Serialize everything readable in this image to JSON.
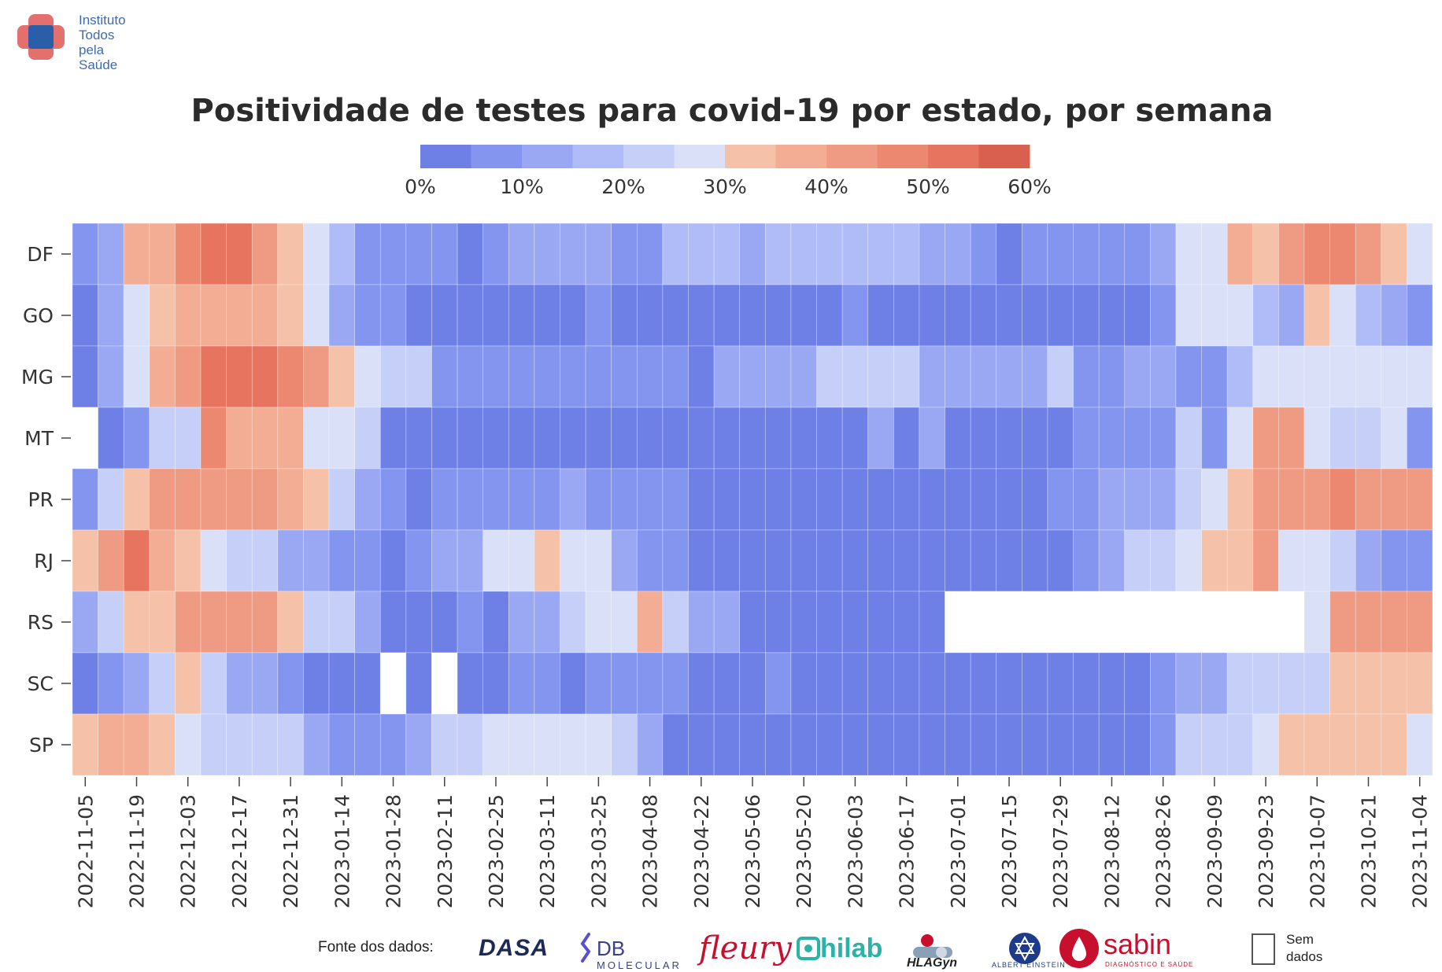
{
  "logo": {
    "lines": [
      "Instituto",
      "Todos",
      "pela",
      "Saúde"
    ],
    "colors": {
      "red": "#e0605c",
      "blue": "#2a5ea8"
    }
  },
  "chart_data": {
    "type": "heatmap",
    "title": "Positividade de testes para covid-19 por estado, por semana",
    "colorbar": {
      "tick_labels": [
        "0%",
        "10%",
        "20%",
        "30%",
        "40%",
        "50%",
        "60%"
      ],
      "tick_values": [
        0,
        10,
        20,
        30,
        40,
        50,
        60
      ],
      "range": [
        0,
        60
      ],
      "band_width": 5,
      "colors": [
        "#6e80e6",
        "#8495ef",
        "#9aa8f4",
        "#b0bcf7",
        "#c5cff8",
        "#d9e0f8",
        "#f5c1a8",
        "#f3ad95",
        "#ef9a82",
        "#ec8870",
        "#e7745e",
        "#d9604e"
      ]
    },
    "rows": [
      "DF",
      "GO",
      "MG",
      "MT",
      "PR",
      "RJ",
      "RS",
      "SC",
      "SP"
    ],
    "x_tick_labels": [
      "2022-11-05",
      "2022-11-19",
      "2022-12-03",
      "2022-12-17",
      "2022-12-31",
      "2023-01-14",
      "2023-01-28",
      "2023-02-11",
      "2023-02-25",
      "2023-03-11",
      "2023-03-25",
      "2023-04-08",
      "2023-04-22",
      "2023-05-06",
      "2023-05-20",
      "2023-06-03",
      "2023-06-17",
      "2023-07-01",
      "2023-07-15",
      "2023-07-29",
      "2023-08-12",
      "2023-08-26",
      "2023-09-09",
      "2023-09-23",
      "2023-10-07",
      "2023-10-21",
      "2023-11-04"
    ],
    "weeks_count": 53,
    "values_percent": [
      [
        7,
        14,
        37,
        37,
        47,
        50,
        52,
        42,
        33,
        27,
        15,
        9,
        9,
        5,
        5,
        4,
        9,
        11,
        14,
        14,
        11,
        9,
        9,
        19,
        19,
        16,
        14,
        16,
        16,
        16,
        16,
        16,
        16,
        14,
        11,
        9,
        4,
        5,
        5,
        9,
        9,
        9,
        14,
        27,
        29,
        36,
        32,
        42,
        49,
        49,
        40,
        34,
        27
      ],
      [
        4,
        14,
        27,
        33,
        37,
        37,
        37,
        37,
        33,
        26,
        14,
        9,
        5,
        4,
        4,
        4,
        4,
        4,
        4,
        4,
        9,
        4,
        4,
        0,
        4,
        4,
        4,
        4,
        4,
        4,
        9,
        4,
        4,
        4,
        4,
        4,
        4,
        4,
        2,
        4,
        4,
        4,
        9,
        27,
        27,
        27,
        19,
        14,
        33,
        27,
        19,
        14,
        9
      ],
      [
        4,
        14,
        27,
        37,
        42,
        52,
        54,
        54,
        47,
        44,
        33,
        27,
        20,
        20,
        9,
        9,
        9,
        9,
        9,
        9,
        9,
        9,
        9,
        9,
        4,
        14,
        14,
        14,
        14,
        20,
        20,
        20,
        20,
        14,
        14,
        14,
        11,
        14,
        20,
        9,
        9,
        14,
        14,
        9,
        9,
        16,
        27,
        27,
        27,
        27,
        27,
        27,
        27
      ],
      [
        null,
        4,
        9,
        20,
        20,
        49,
        37,
        37,
        37,
        27,
        27,
        20,
        4,
        0,
        4,
        4,
        4,
        0,
        4,
        4,
        0,
        0,
        4,
        4,
        4,
        4,
        4,
        4,
        4,
        4,
        4,
        14,
        4,
        14,
        4,
        4,
        4,
        0,
        4,
        9,
        9,
        9,
        9,
        20,
        9,
        27,
        44,
        44,
        27,
        20,
        20,
        27,
        9
      ],
      [
        9,
        20,
        33,
        44,
        44,
        44,
        44,
        44,
        37,
        33,
        20,
        14,
        9,
        4,
        9,
        9,
        9,
        9,
        9,
        14,
        9,
        9,
        9,
        9,
        4,
        4,
        4,
        4,
        4,
        4,
        4,
        4,
        4,
        4,
        4,
        4,
        4,
        4,
        9,
        9,
        14,
        14,
        14,
        20,
        27,
        33,
        40,
        42,
        44,
        47,
        44,
        44,
        42
      ],
      [
        33,
        44,
        50,
        37,
        33,
        27,
        20,
        20,
        14,
        14,
        9,
        9,
        4,
        9,
        14,
        14,
        27,
        27,
        33,
        27,
        27,
        14,
        9,
        9,
        4,
        4,
        4,
        4,
        2,
        2,
        2,
        2,
        2,
        2,
        2,
        2,
        4,
        4,
        4,
        9,
        14,
        20,
        20,
        27,
        33,
        33,
        44,
        27,
        27,
        20,
        14,
        9,
        9
      ],
      [
        14,
        20,
        33,
        33,
        44,
        44,
        42,
        44,
        33,
        20,
        20,
        14,
        4,
        4,
        4,
        9,
        4,
        14,
        14,
        20,
        27,
        27,
        37,
        20,
        14,
        14,
        4,
        4,
        4,
        4,
        2,
        2,
        2,
        4,
        null,
        null,
        null,
        null,
        null,
        null,
        null,
        null,
        null,
        null,
        null,
        null,
        null,
        null,
        27,
        40,
        42,
        42,
        42
      ],
      [
        4,
        9,
        14,
        20,
        33,
        20,
        14,
        14,
        9,
        4,
        0,
        0,
        null,
        4,
        null,
        4,
        4,
        9,
        9,
        4,
        9,
        9,
        9,
        9,
        4,
        4,
        4,
        9,
        4,
        4,
        4,
        4,
        4,
        4,
        2,
        2,
        2,
        2,
        2,
        2,
        2,
        4,
        9,
        14,
        14,
        20,
        20,
        20,
        20,
        33,
        33,
        33,
        33
      ],
      [
        33,
        37,
        37,
        33,
        27,
        20,
        20,
        20,
        20,
        14,
        9,
        9,
        9,
        14,
        20,
        20,
        27,
        27,
        27,
        27,
        27,
        20,
        14,
        4,
        4,
        4,
        4,
        4,
        4,
        2,
        2,
        2,
        2,
        2,
        2,
        2,
        2,
        2,
        2,
        4,
        4,
        4,
        9,
        20,
        20,
        20,
        27,
        33,
        33,
        33,
        33,
        33,
        27
      ]
    ],
    "missing_color": "#ffffff",
    "grid": false
  },
  "footer": {
    "source_label": "Fonte dos dados:",
    "brands": {
      "dasa": "DASA",
      "db_main": "DB",
      "db_sub": "MOLECULAR",
      "fleury": "fleury",
      "hilab": "hilab",
      "hlagyn": "HLAGyn",
      "einstein": "ALBERT EINSTEIN",
      "sabin": "sabin",
      "sabin_sub": "DIAGNÓSTICO E SAÚDE"
    },
    "legend_missing": "Sem dados"
  }
}
